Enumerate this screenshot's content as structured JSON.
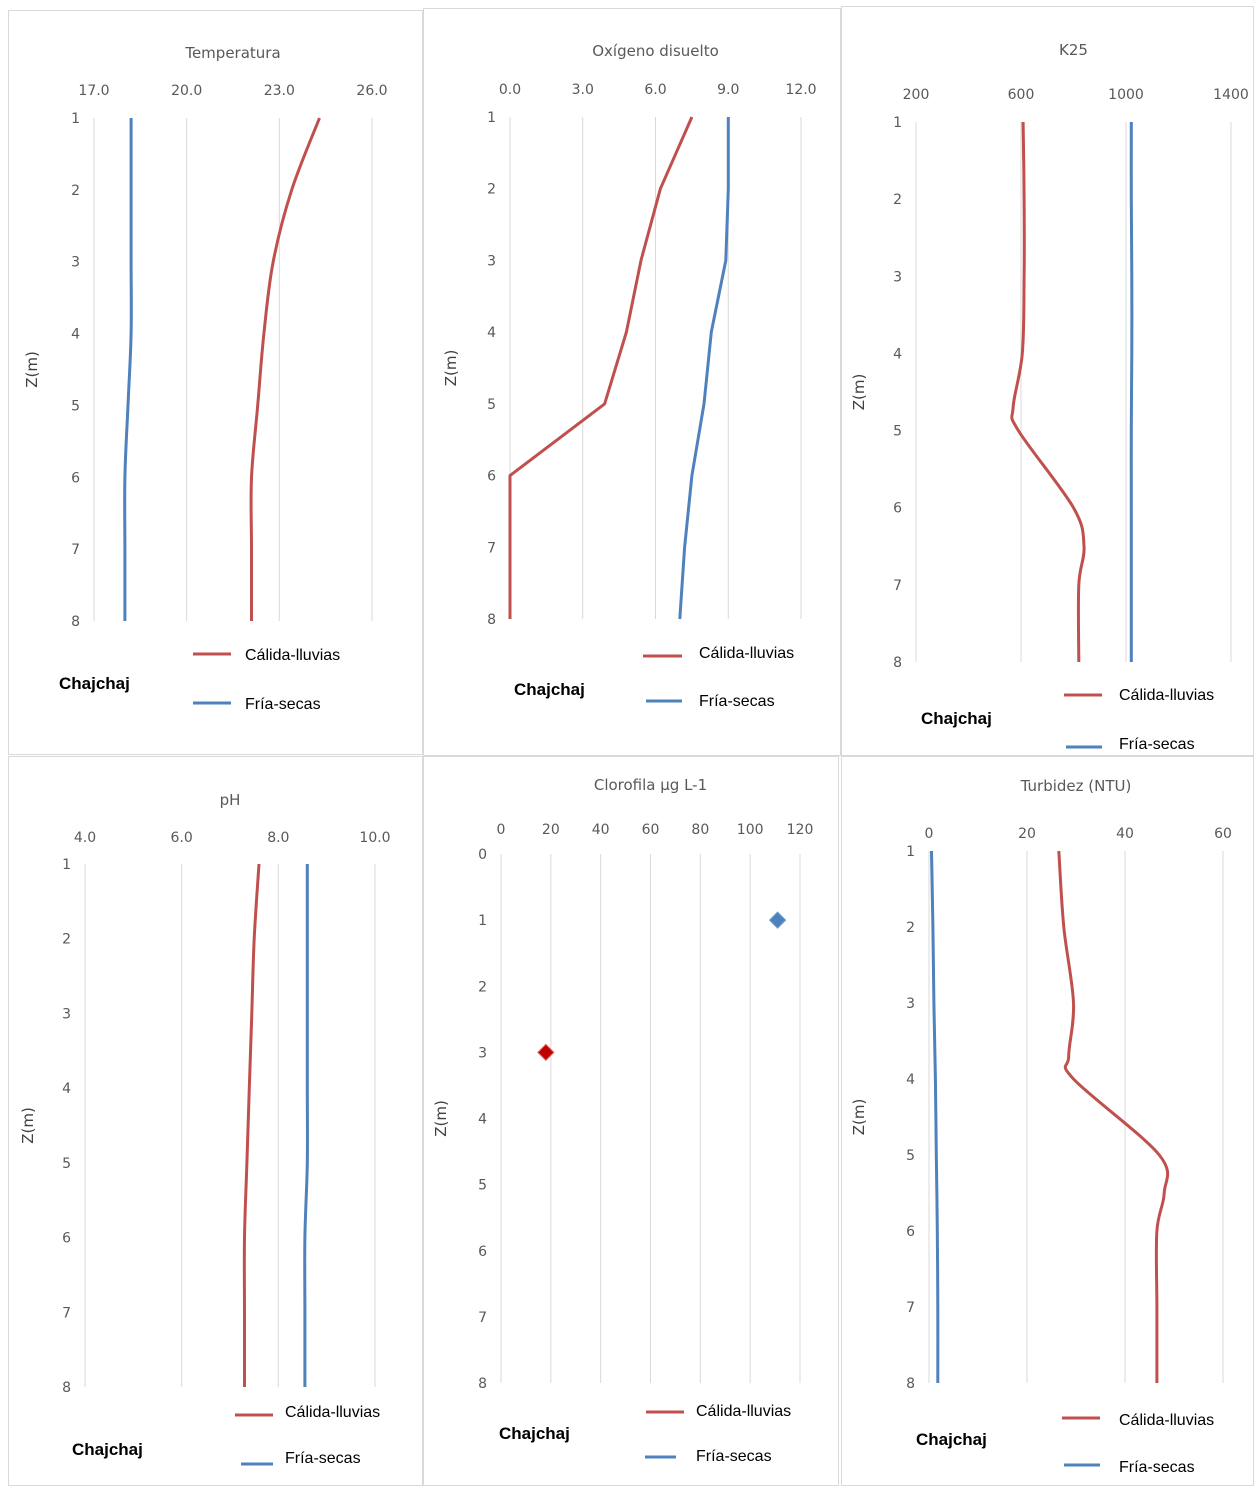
{
  "colors": {
    "calida": "#c0504d",
    "fria": "#4f81bd",
    "calida_marker": "#c00000"
  },
  "chart_data": [
    {
      "type": "line",
      "title": "Temperatura",
      "ylabel": "Z(m)",
      "site": "Chajchaj",
      "x_ticks": [
        "17.0",
        "20.0",
        "23.0",
        "26.0"
      ],
      "xlim": [
        17,
        26
      ],
      "y_ticks": [
        "1",
        "2",
        "3",
        "4",
        "5",
        "6",
        "7",
        "8"
      ],
      "ylim": [
        1,
        8
      ],
      "smooth": true,
      "legend": [
        "Cálida-lluvias",
        "Fría-secas"
      ],
      "series": [
        {
          "name": "Cálida-lluvias",
          "color": "#c0504d",
          "y": [
            1,
            2,
            3,
            4,
            5,
            6,
            7,
            8
          ],
          "x": [
            24.3,
            23.4,
            22.8,
            22.5,
            22.3,
            22.1,
            22.1,
            22.1
          ]
        },
        {
          "name": "Fría-secas",
          "color": "#4f81bd",
          "y": [
            1,
            2,
            3,
            4,
            5,
            6,
            7,
            8
          ],
          "x": [
            18.2,
            18.2,
            18.2,
            18.2,
            18.1,
            18.0,
            18.0,
            18.0
          ]
        }
      ]
    },
    {
      "type": "line",
      "title": "Oxígeno disuelto",
      "ylabel": "Z(m)",
      "site": "Chajchaj",
      "x_ticks": [
        "0.0",
        "3.0",
        "6.0",
        "9.0",
        "12.0"
      ],
      "xlim": [
        0,
        12
      ],
      "y_ticks": [
        "1",
        "2",
        "3",
        "4",
        "5",
        "6",
        "7",
        "8"
      ],
      "ylim": [
        1,
        8
      ],
      "smooth": false,
      "legend": [
        "Cálida-lluvias",
        "Fría-secas"
      ],
      "series": [
        {
          "name": "Cálida-lluvias",
          "color": "#c0504d",
          "y": [
            1,
            2,
            3,
            4,
            5,
            6,
            7,
            8
          ],
          "x": [
            7.5,
            6.2,
            5.4,
            4.8,
            3.9,
            0.0,
            0.0,
            0.0
          ]
        },
        {
          "name": "Fría-secas",
          "color": "#4f81bd",
          "y": [
            1,
            2,
            3,
            4,
            5,
            6,
            7,
            8
          ],
          "x": [
            9.0,
            9.0,
            8.9,
            8.3,
            8.0,
            7.5,
            7.2,
            7.0
          ]
        }
      ]
    },
    {
      "type": "line",
      "title": "K25",
      "ylabel": "Z(m)",
      "site": "Chajchaj",
      "x_ticks": [
        "200",
        "600",
        "1000",
        "1400"
      ],
      "xlim": [
        200,
        1400
      ],
      "y_ticks": [
        "1",
        "2",
        "3",
        "4",
        "5",
        "6",
        "7",
        "8"
      ],
      "ylim": [
        1,
        8
      ],
      "smooth": true,
      "legend": [
        "Cálida-lluvias",
        "Fría-secas"
      ],
      "series": [
        {
          "name": "Cálida-lluvias",
          "color": "#c0504d",
          "y": [
            1,
            2,
            3,
            4,
            4.7,
            5,
            6,
            6.5,
            7,
            8
          ],
          "x": [
            608,
            612,
            612,
            605,
            570,
            590,
            800,
            840,
            820,
            820
          ]
        },
        {
          "name": "Fría-secas",
          "color": "#4f81bd",
          "y": [
            1,
            2,
            3,
            4,
            5,
            6,
            7,
            8
          ],
          "x": [
            1020,
            1020,
            1022,
            1022,
            1020,
            1020,
            1020,
            1020
          ]
        }
      ]
    },
    {
      "type": "line",
      "title": "pH",
      "ylabel": "Z(m)",
      "site": "Chajchaj",
      "x_ticks": [
        "4.0",
        "6.0",
        "8.0",
        "10.0"
      ],
      "xlim": [
        4,
        10
      ],
      "y_ticks": [
        "1",
        "2",
        "3",
        "4",
        "5",
        "6",
        "7",
        "8"
      ],
      "ylim": [
        1,
        8
      ],
      "smooth": true,
      "legend": [
        "Cálida-lluvias",
        "Fría-secas"
      ],
      "series": [
        {
          "name": "Cálida-lluvias",
          "color": "#c0504d",
          "y": [
            1,
            2,
            3,
            4,
            5,
            6,
            7,
            8
          ],
          "x": [
            7.6,
            7.5,
            7.45,
            7.4,
            7.35,
            7.3,
            7.3,
            7.3
          ]
        },
        {
          "name": "Fría-secas",
          "color": "#4f81bd",
          "y": [
            1,
            2,
            3,
            4,
            5,
            6,
            7,
            8
          ],
          "x": [
            8.6,
            8.6,
            8.6,
            8.6,
            8.6,
            8.55,
            8.55,
            8.55
          ]
        }
      ]
    },
    {
      "type": "scatter",
      "title": "Clorofila µg L-1",
      "ylabel": "Z(m)",
      "site": "Chajchaj",
      "x_ticks": [
        "0",
        "20",
        "40",
        "60",
        "80",
        "100",
        "120"
      ],
      "xlim": [
        0,
        120
      ],
      "y_ticks": [
        "0",
        "1",
        "2",
        "3",
        "4",
        "5",
        "6",
        "7",
        "8"
      ],
      "ylim": [
        0,
        8
      ],
      "legend": [
        "Cálida-lluvias",
        "Fría-secas"
      ],
      "series": [
        {
          "name": "Cálida-lluvias",
          "color": "#c00000",
          "y": [
            3
          ],
          "x": [
            18
          ]
        },
        {
          "name": "Fría-secas",
          "color": "#4f81bd",
          "y": [
            1
          ],
          "x": [
            111
          ]
        }
      ]
    },
    {
      "type": "line",
      "title": "Turbidez (NTU)",
      "ylabel": "Z(m)",
      "site": "Chajchaj",
      "x_ticks": [
        "0",
        "20",
        "40",
        "60"
      ],
      "xlim": [
        0,
        60
      ],
      "y_ticks": [
        "1",
        "2",
        "3",
        "4",
        "5",
        "6",
        "7",
        "8"
      ],
      "ylim": [
        1,
        8
      ],
      "smooth": true,
      "legend": [
        "Cálida-lluvias",
        "Fría-secas"
      ],
      "series": [
        {
          "name": "Cálida-lluvias",
          "color": "#c0504d",
          "y": [
            1,
            2,
            3,
            3.7,
            4,
            5,
            5.5,
            6,
            7,
            8
          ],
          "x": [
            26.5,
            27.5,
            29.5,
            28.5,
            29.5,
            47,
            48,
            46.5,
            46.5,
            46.5
          ]
        },
        {
          "name": "Fría-secas",
          "color": "#4f81bd",
          "y": [
            1,
            2,
            3,
            4,
            5,
            6,
            7,
            8
          ],
          "x": [
            0.5,
            0.8,
            1.0,
            1.3,
            1.5,
            1.7,
            1.8,
            1.8
          ]
        }
      ]
    }
  ]
}
